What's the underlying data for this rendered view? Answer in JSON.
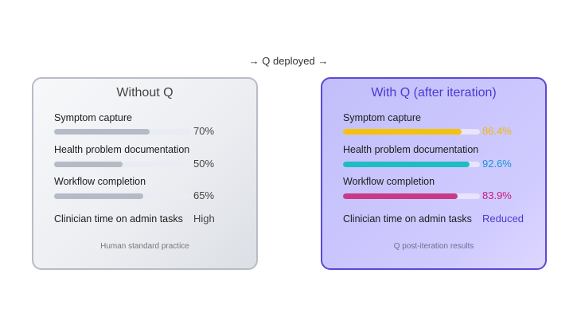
{
  "header": {
    "deployment_label": "→ Q deployed →"
  },
  "colors": {
    "left_bar": "#b5bbc6",
    "right_symptom": "#f4c20d",
    "right_health": "#1ebcc4",
    "right_workflow": "#c83a86",
    "right_symptom_value": "#f2b705",
    "right_health_value": "#1a93d6",
    "right_workflow_value": "#c8187a"
  },
  "panels": [
    {
      "title": "Without Q",
      "metrics": [
        {
          "label": "Symptom capture",
          "value_text": "70%",
          "fraction": 0.7
        },
        {
          "label": "Health problem documentation",
          "value_text": "50%",
          "fraction": 0.5
        },
        {
          "label": "Workflow completion",
          "value_text": "65%",
          "fraction": 0.65
        }
      ],
      "admin_label": "Clinician time on admin tasks",
      "admin_value": "High",
      "caption": "Human standard practice"
    },
    {
      "title": "With Q (after iteration)",
      "metrics": [
        {
          "label": "Symptom capture",
          "value_text": "86.4%",
          "fraction": 0.864
        },
        {
          "label": "Health problem documentation",
          "value_text": "92.6%",
          "fraction": 0.926
        },
        {
          "label": "Workflow completion",
          "value_text": "83.9%",
          "fraction": 0.839
        }
      ],
      "admin_label": "Clinician time on admin tasks",
      "admin_value": "Reduced",
      "caption": "Q post-iteration results"
    }
  ]
}
